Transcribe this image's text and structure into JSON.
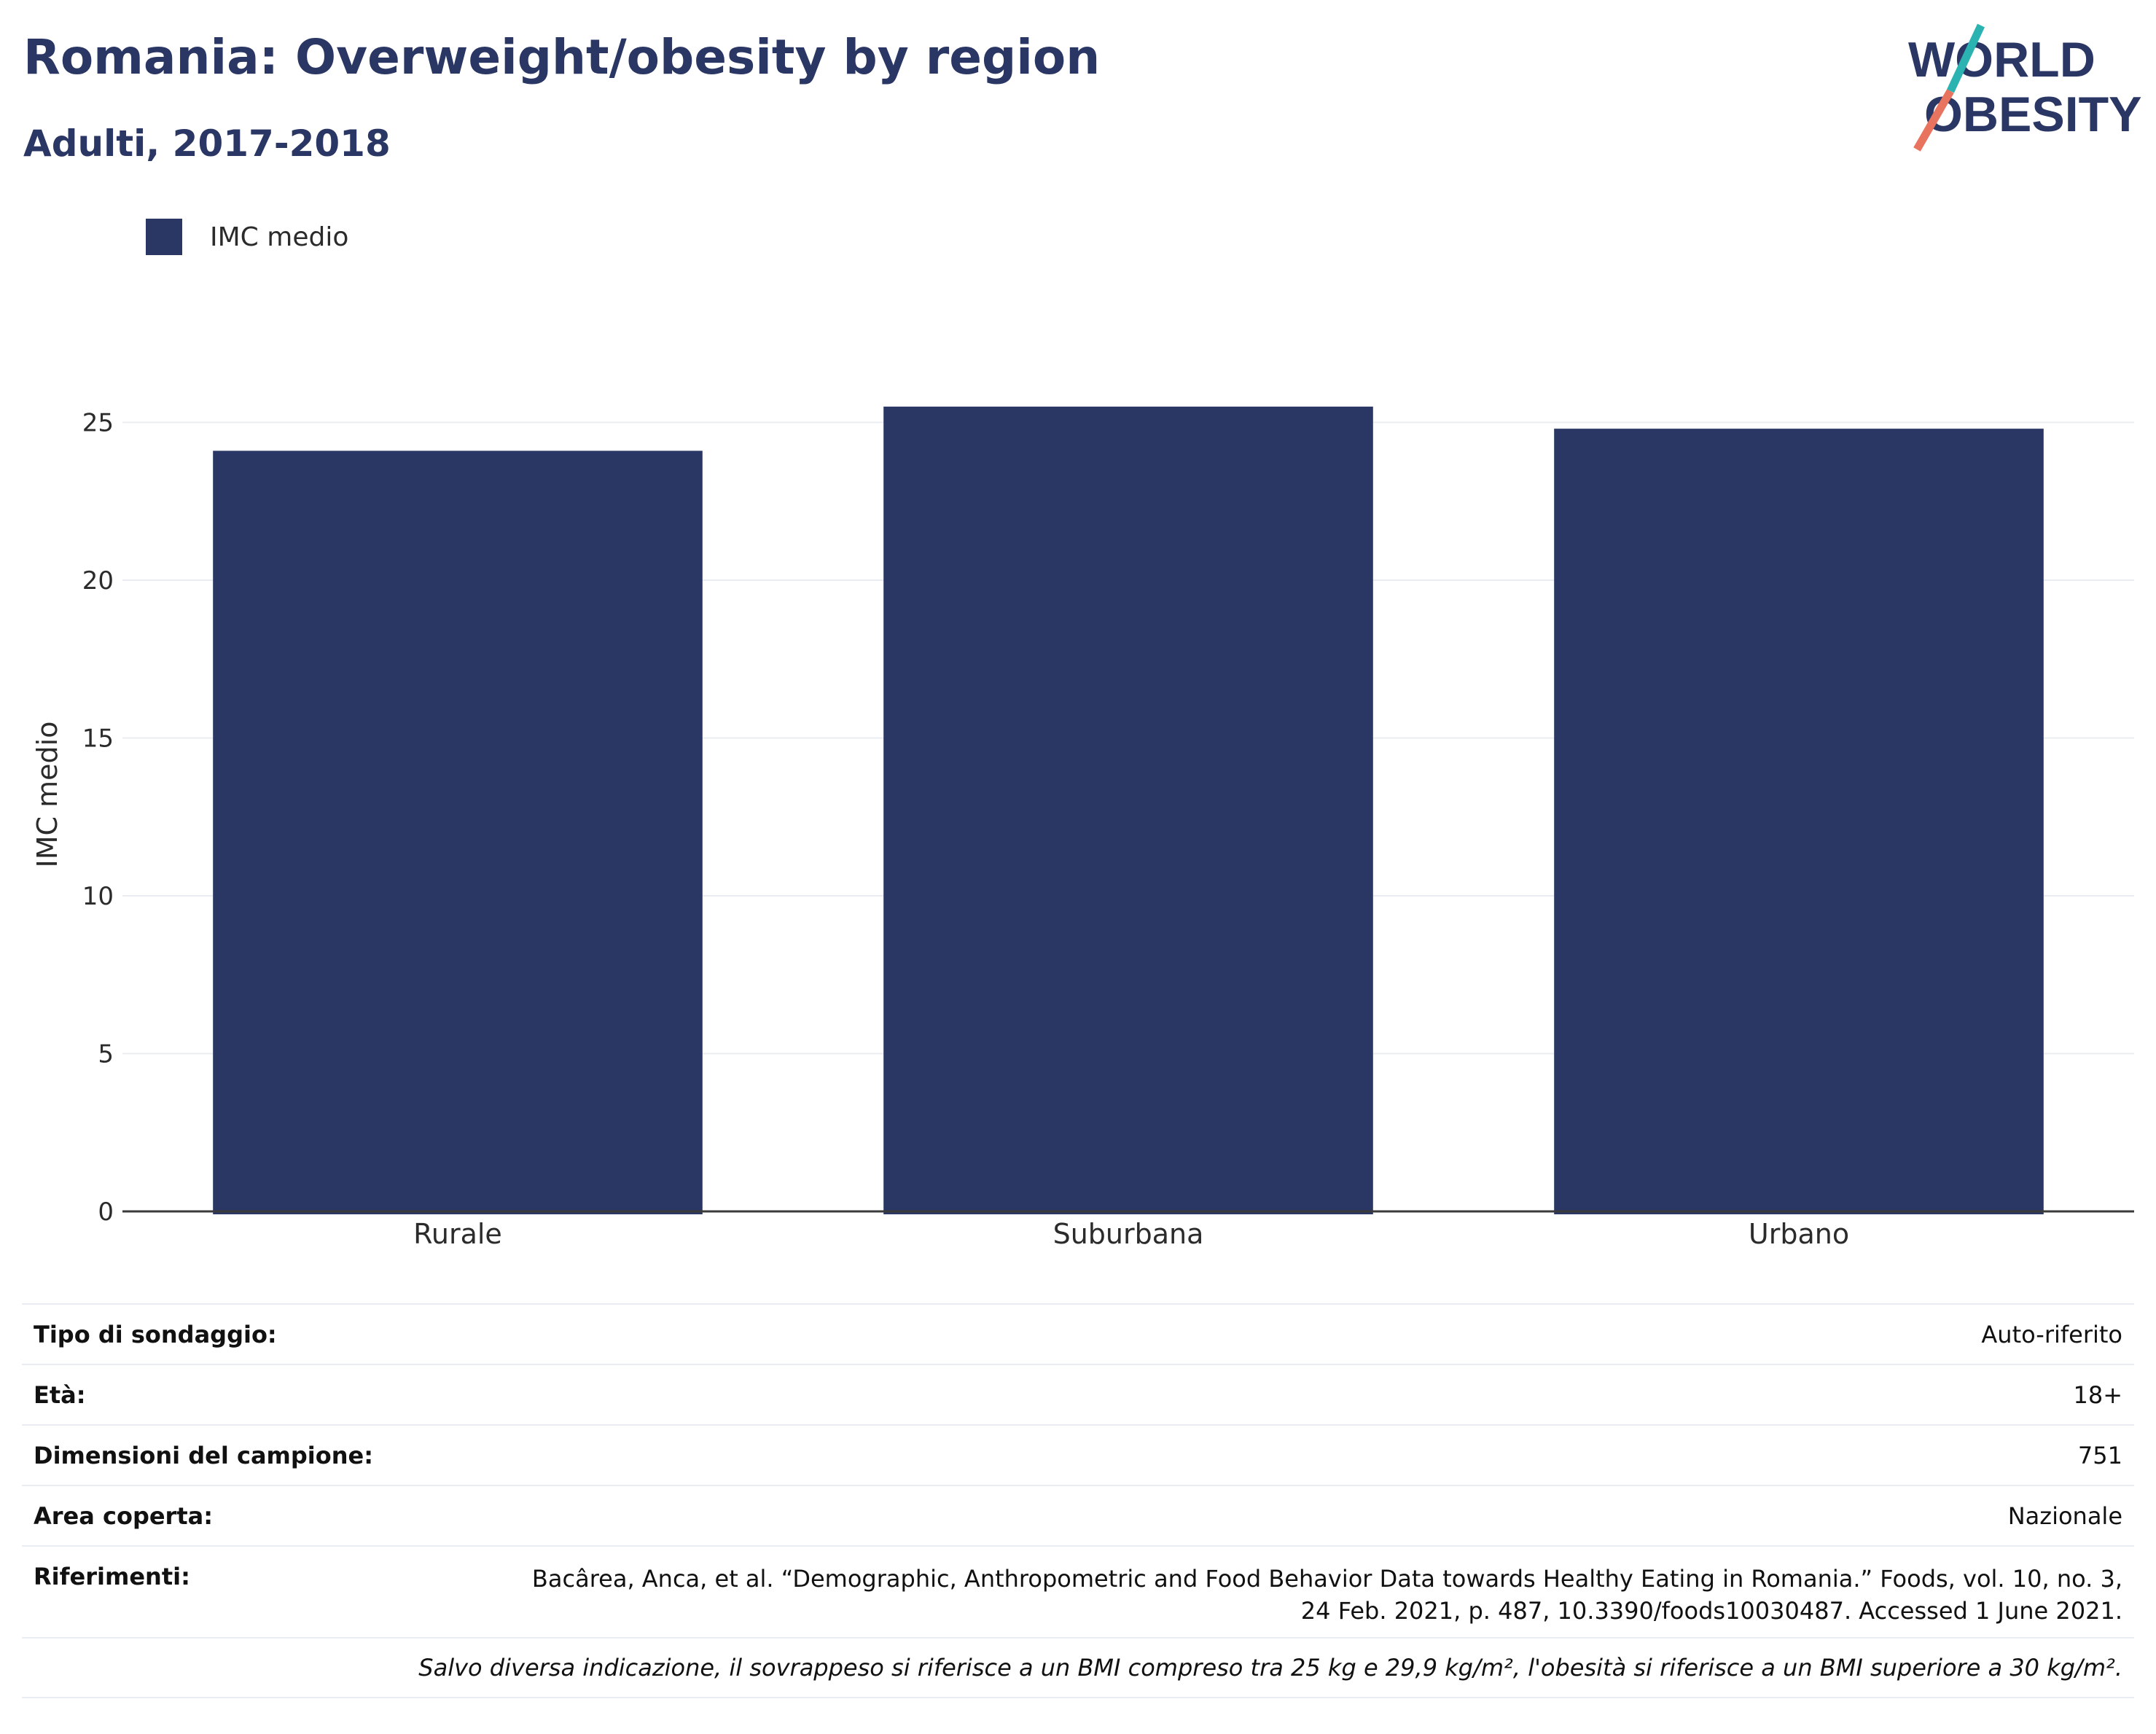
{
  "header": {
    "title": "Romania: Overweight/obesity by region",
    "subtitle": "Adulti, 2017-2018"
  },
  "logo": {
    "line1": "WORLD",
    "line2": "OBESITY"
  },
  "colors": {
    "bar": "#2a3663",
    "text": "#2a3663",
    "logo_teal": "#2bb3b1",
    "logo_coral": "#e8735e",
    "grid": "#e9edf2"
  },
  "chart_data": {
    "type": "bar",
    "categories": [
      "Rurale",
      "Suburbana",
      "Urbano"
    ],
    "series": [
      {
        "name": "IMC medio",
        "values": [
          24.1,
          25.5,
          24.8
        ]
      }
    ],
    "ylabel": "IMC medio",
    "xlabel": "",
    "ylim": [
      0,
      27
    ],
    "yticks": [
      0,
      5,
      10,
      15,
      20,
      25
    ],
    "grid": true,
    "legend_position": "top-left"
  },
  "info": {
    "rows": [
      {
        "key": "Tipo di sondaggio:",
        "value": "Auto-riferito"
      },
      {
        "key": "Età:",
        "value": "18+"
      },
      {
        "key": "Dimensioni del campione:",
        "value": "751"
      },
      {
        "key": "Area coperta:",
        "value": "Nazionale"
      }
    ],
    "references_key": "Riferimenti:",
    "references_line1": "Bacârea, Anca, et al. “Demographic, Anthropometric and Food Behavior Data towards Healthy Eating in Romania.” Foods, vol. 10, no. 3,",
    "references_line2": "24 Feb. 2021, p. 487, 10.3390/foods10030487. Accessed 1 June 2021.",
    "note": "Salvo diversa indicazione, il sovrappeso si riferisce a un BMI compreso tra 25 kg e 29,9 kg/m², l'obesità si riferisce a un BMI superiore a 30 kg/m²."
  }
}
